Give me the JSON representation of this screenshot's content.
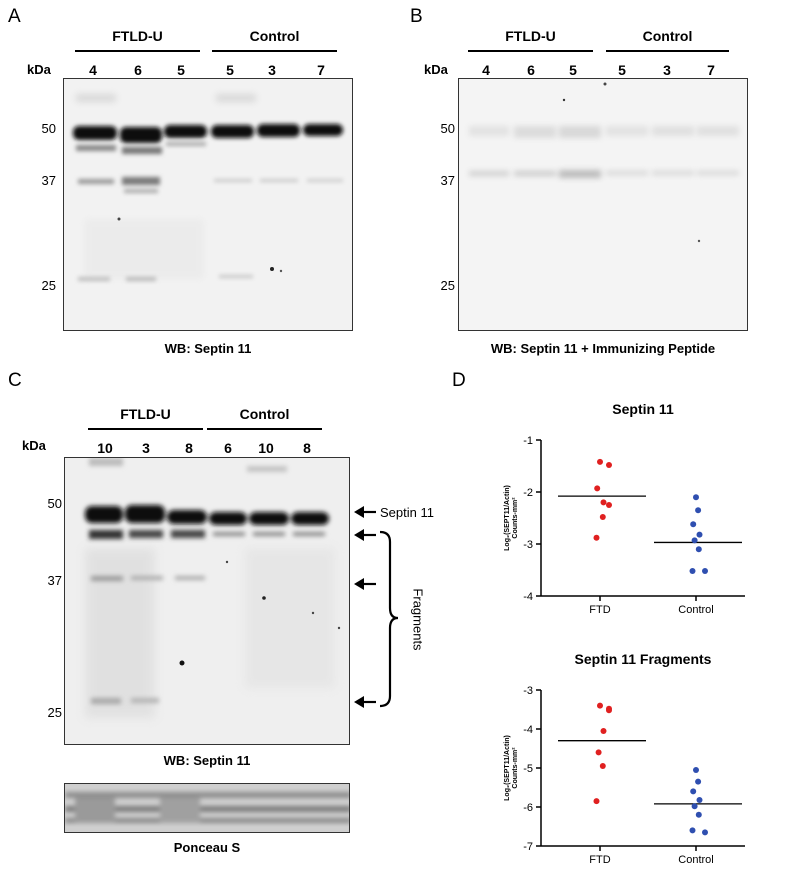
{
  "panels": {
    "A": {
      "letter": "A",
      "groups": [
        "FTLD-U",
        "Control"
      ],
      "kda_label": "kDa",
      "lanes": [
        "4",
        "6",
        "5",
        "5",
        "3",
        "7"
      ],
      "markers": [
        "50",
        "37",
        "25"
      ],
      "caption": "WB: Septin 11"
    },
    "B": {
      "letter": "B",
      "groups": [
        "FTLD-U",
        "Control"
      ],
      "kda_label": "kDa",
      "lanes": [
        "4",
        "6",
        "5",
        "5",
        "3",
        "7"
      ],
      "markers": [
        "50",
        "37",
        "25"
      ],
      "caption": "WB: Septin 11 + Immunizing Peptide"
    },
    "C": {
      "letter": "C",
      "groups": [
        "FTLD-U",
        "Control"
      ],
      "kda_label": "kDa",
      "lanes": [
        "10",
        "3",
        "8",
        "6",
        "10",
        "8"
      ],
      "markers": [
        "50",
        "37",
        "25"
      ],
      "band_label": "Septin 11",
      "fragments_label": "Fragments",
      "caption": "WB: Septin 11",
      "ponceau_caption": "Ponceau S"
    },
    "D": {
      "letter": "D"
    }
  },
  "chart_data": [
    {
      "type": "scatter",
      "title": "Septin 11",
      "ylabel_line1": "Log₂(SEPT11/Actin)",
      "ylabel_line2": "Counts-mm²",
      "ylim": [
        -4,
        -1
      ],
      "yticks": [
        "-1",
        "-2",
        "-3",
        "-4"
      ],
      "categories": [
        "FTD",
        "Control"
      ],
      "series": [
        {
          "category": "FTD",
          "color": "#e02020",
          "values": [
            -1.42,
            -1.48,
            -1.93,
            -2.2,
            -2.25,
            -2.48,
            -2.88
          ],
          "mean": -2.08
        },
        {
          "category": "Control",
          "color": "#2f4fb0",
          "values": [
            -2.1,
            -2.35,
            -2.62,
            -2.82,
            -2.93,
            -3.1,
            -3.52,
            -3.52
          ],
          "mean": -2.97
        }
      ]
    },
    {
      "type": "scatter",
      "title": "Septin 11 Fragments",
      "ylabel_line1": "Log₂(SEPT11/Actin)",
      "ylabel_line2": "Counts-mm²",
      "ylim": [
        -7,
        -3
      ],
      "yticks": [
        "-3",
        "-4",
        "-5",
        "-6",
        "-7"
      ],
      "categories": [
        "FTD",
        "Control"
      ],
      "series": [
        {
          "category": "FTD",
          "color": "#e02020",
          "values": [
            -3.4,
            -3.48,
            -3.52,
            -4.05,
            -4.6,
            -4.95,
            -5.85
          ],
          "mean": -4.3
        },
        {
          "category": "Control",
          "color": "#2f4fb0",
          "values": [
            -5.05,
            -5.35,
            -5.6,
            -5.82,
            -5.98,
            -6.2,
            -6.6,
            -6.65
          ],
          "mean": -5.92
        }
      ]
    }
  ]
}
